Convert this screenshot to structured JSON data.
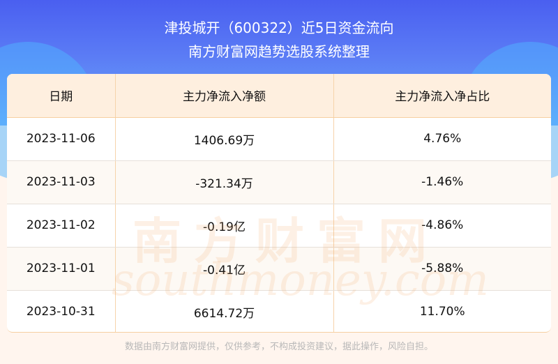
{
  "header": {
    "title": "津投城开（600322）近5日资金流向",
    "subtitle": "南方财富网趋势选股系统整理"
  },
  "table": {
    "columns": [
      "日期",
      "主力净流入净额",
      "主力净流入净占比"
    ],
    "rows": [
      [
        "2023-11-06",
        "1406.69万",
        "4.76%"
      ],
      [
        "2023-11-03",
        "-321.34万",
        "-1.46%"
      ],
      [
        "2023-11-02",
        "-0.19亿",
        "-4.86%"
      ],
      [
        "2023-11-01",
        "-0.41亿",
        "-5.88%"
      ],
      [
        "2023-10-31",
        "6614.72万",
        "11.70%"
      ]
    ]
  },
  "watermark": {
    "cn": "南方财富网",
    "en": "southmoney.com"
  },
  "footer": "数据由南方财富网提供，仅供参考，不构成投资建议，据此操作，风险自担。"
}
